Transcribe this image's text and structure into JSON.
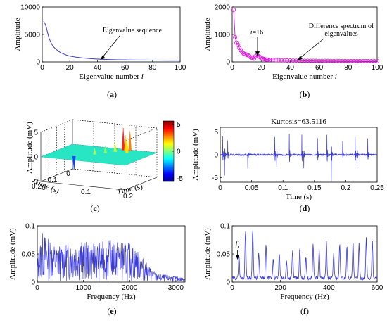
{
  "chart_data": [
    {
      "id": "a",
      "type": "line",
      "panel_label": "(a)",
      "xlabel": "Eigenvalue number i",
      "ylabel": "Amplitude",
      "xlim": [
        0,
        100
      ],
      "ylim": [
        0,
        10000
      ],
      "xticks": [
        0,
        20,
        40,
        60,
        80,
        100
      ],
      "yticks": [
        0,
        5000,
        10000
      ],
      "series": [
        {
          "color": "#3b3bd9",
          "x": [
            1,
            2,
            3,
            4,
            5,
            6,
            7,
            8,
            10,
            12,
            14,
            16,
            18,
            20,
            25,
            30,
            35,
            40,
            45,
            50,
            55,
            60,
            65,
            70,
            75,
            80,
            85,
            90,
            95,
            100
          ],
          "y": [
            7400,
            7000,
            6300,
            5200,
            4300,
            3700,
            3200,
            2800,
            2300,
            1900,
            1600,
            1400,
            1200,
            1050,
            850,
            700,
            600,
            520,
            460,
            420,
            390,
            370,
            350,
            340,
            330,
            320,
            315,
            310,
            305,
            300
          ]
        }
      ],
      "annotations": [
        {
          "text": "Eigenvalue sequence",
          "x": 42,
          "y": 400
        }
      ]
    },
    {
      "id": "b",
      "type": "line",
      "panel_label": "(b)",
      "xlabel": "Eigenvalue number i",
      "ylabel": "Amplitude",
      "xlim": [
        0,
        100
      ],
      "ylim": [
        0,
        2000
      ],
      "xticks": [
        0,
        20,
        40,
        60,
        80,
        100
      ],
      "yticks": [
        0,
        1000,
        2000
      ],
      "series": [
        {
          "color": "#e020e0",
          "marker": "circle",
          "x": [
            1,
            2,
            3,
            4,
            5,
            6,
            7,
            8,
            9,
            10,
            11,
            12,
            13,
            14,
            15,
            16,
            17,
            18,
            19,
            20,
            21,
            22,
            23,
            24,
            25,
            26,
            28,
            30,
            32,
            34,
            36,
            38,
            40,
            42,
            44,
            46,
            48,
            50,
            52,
            54,
            56,
            58,
            60,
            62,
            64,
            66,
            68,
            70,
            72,
            74,
            76,
            78,
            80,
            82,
            84,
            86,
            88,
            90,
            92,
            94,
            96,
            98,
            100
          ],
          "y": [
            1900,
            900,
            700,
            620,
            500,
            420,
            350,
            300,
            280,
            260,
            240,
            200,
            160,
            150,
            120,
            200,
            250,
            210,
            180,
            140,
            120,
            100,
            90,
            85,
            80,
            75,
            70,
            65,
            60,
            55,
            55,
            50,
            50,
            48,
            45,
            45,
            42,
            40,
            40,
            38,
            38,
            36,
            35,
            35,
            34,
            33,
            32,
            32,
            31,
            30,
            30,
            30,
            29,
            29,
            28,
            28,
            28,
            27,
            27,
            26,
            26,
            25,
            25
          ]
        }
      ],
      "annotations": [
        {
          "text": "i=16",
          "x": 16,
          "y": 150
        },
        {
          "text": "Difference spectrum of",
          "x": 45,
          "y": 50
        },
        {
          "text": "eigenvalues",
          "x": 45,
          "y": 50
        }
      ]
    },
    {
      "id": "c",
      "type": "surface",
      "panel_label": "(c)",
      "zlabel": "Amplitude (mV)",
      "xlabel": "Time (s)",
      "ylabel": "Time (s)",
      "zlim": [
        -5,
        5
      ],
      "zticks": [
        -5,
        0,
        5
      ],
      "x_ticks": [
        0,
        0.1,
        0.2
      ],
      "y_ticks": [
        0,
        0.1,
        0.2
      ],
      "colorbar": {
        "range": [
          -5,
          5
        ],
        "ticks": [
          5,
          0,
          -5
        ],
        "colors": [
          "#00008f",
          "#0000ff",
          "#0080ff",
          "#00ffff",
          "#80ff80",
          "#ffff00",
          "#ff8000",
          "#ff0000",
          "#800000"
        ]
      }
    },
    {
      "id": "d",
      "type": "line",
      "panel_label": "(d)",
      "title": "Kurtosis=63.5116",
      "xlabel": "Time (s)",
      "ylabel": "Amplitude (mV)",
      "xlim": [
        0,
        0.25
      ],
      "ylim": [
        -6,
        6
      ],
      "xticks": [
        0,
        0.05,
        0.1,
        0.15,
        0.2,
        0.25
      ],
      "xtick_labels": [
        "0",
        "0.05",
        "0.1",
        "0.15",
        "0.2",
        "0.25"
      ],
      "yticks": [
        -5,
        0,
        5
      ],
      "series": [
        {
          "color": "#3b3bd9",
          "impulses": [
            {
              "t": 0.004,
              "amp": 4.0
            },
            {
              "t": 0.007,
              "amp": -4.5
            },
            {
              "t": 0.012,
              "amp": 3.0
            },
            {
              "t": 0.044,
              "amp": -3.0
            },
            {
              "t": 0.087,
              "amp": 4.0
            },
            {
              "t": 0.09,
              "amp": -2.5
            },
            {
              "t": 0.11,
              "amp": 4.5
            },
            {
              "t": 0.13,
              "amp": 4.5
            },
            {
              "t": 0.133,
              "amp": -3.0
            },
            {
              "t": 0.155,
              "amp": 3.5
            },
            {
              "t": 0.17,
              "amp": 4.5
            },
            {
              "t": 0.177,
              "amp": -6.0
            },
            {
              "t": 0.195,
              "amp": 3.0
            },
            {
              "t": 0.215,
              "amp": 4.0
            },
            {
              "t": 0.218,
              "amp": -3.0
            },
            {
              "t": 0.235,
              "amp": 3.5
            }
          ]
        }
      ]
    },
    {
      "id": "e",
      "type": "line",
      "panel_label": "(e)",
      "xlabel": "Frequency (Hz)",
      "ylabel": "Amplitude (mV)",
      "xlim": [
        0,
        3200
      ],
      "ylim": [
        0,
        0.1
      ],
      "xticks": [
        0,
        1000,
        2000,
        3000
      ],
      "yticks": [
        0,
        0.05,
        0.1
      ],
      "series": [
        {
          "color": "#3b3bd9",
          "profile": [
            {
              "f": 0,
              "a": 0.04
            },
            {
              "f": 100,
              "a": 0.09
            },
            {
              "f": 400,
              "a": 0.065
            },
            {
              "f": 800,
              "a": 0.075
            },
            {
              "f": 1200,
              "a": 0.07
            },
            {
              "f": 1600,
              "a": 0.075
            },
            {
              "f": 2000,
              "a": 0.07
            },
            {
              "f": 2200,
              "a": 0.055
            },
            {
              "f": 2400,
              "a": 0.03
            },
            {
              "f": 2600,
              "a": 0.015
            },
            {
              "f": 3200,
              "a": 0.008
            }
          ]
        }
      ]
    },
    {
      "id": "f",
      "type": "line",
      "panel_label": "(f)",
      "xlabel": "Frequency (Hz)",
      "ylabel": "Amplitude (mV)",
      "xlim": [
        0,
        600
      ],
      "ylim": [
        0,
        0.1
      ],
      "xticks": [
        0,
        200,
        400,
        600
      ],
      "yticks": [
        0,
        0.05,
        0.1
      ],
      "series": [
        {
          "color": "#3b3bd9",
          "peaks": [
            {
              "f": 28,
              "a": 0.04
            },
            {
              "f": 55,
              "a": 0.085
            },
            {
              "f": 85,
              "a": 0.09
            },
            {
              "f": 110,
              "a": 0.045
            },
            {
              "f": 140,
              "a": 0.06
            },
            {
              "f": 170,
              "a": 0.035
            },
            {
              "f": 195,
              "a": 0.045
            },
            {
              "f": 225,
              "a": 0.03
            },
            {
              "f": 250,
              "a": 0.05
            },
            {
              "f": 280,
              "a": 0.055
            },
            {
              "f": 305,
              "a": 0.04
            },
            {
              "f": 335,
              "a": 0.06
            },
            {
              "f": 360,
              "a": 0.05
            },
            {
              "f": 390,
              "a": 0.065
            },
            {
              "f": 420,
              "a": 0.045
            },
            {
              "f": 445,
              "a": 0.06
            },
            {
              "f": 475,
              "a": 0.055
            },
            {
              "f": 500,
              "a": 0.065
            },
            {
              "f": 525,
              "a": 0.06
            },
            {
              "f": 555,
              "a": 0.07
            },
            {
              "f": 580,
              "a": 0.065
            }
          ]
        }
      ],
      "annotations": [
        {
          "text": "f",
          "sub": "r",
          "x": 28,
          "y": 0.04
        }
      ]
    }
  ]
}
